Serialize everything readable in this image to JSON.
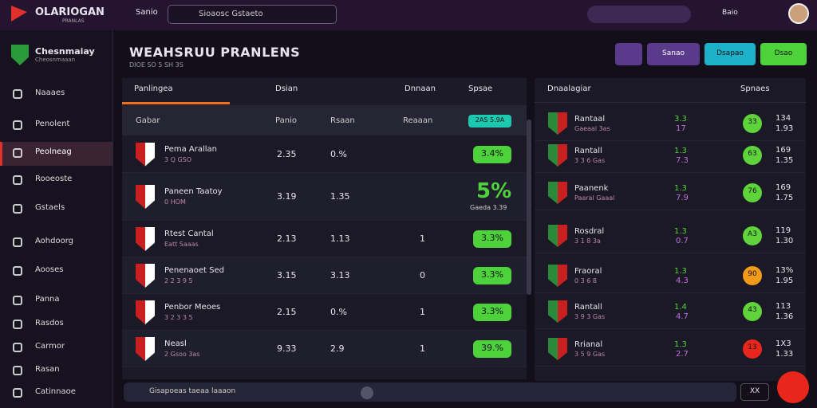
{
  "header": {
    "logo": "OLARIOGAN",
    "tagline": "PRANLAS",
    "nav": "Sanio",
    "search": "Sioaosc Gstaeto",
    "user": "Baio"
  },
  "sidebar": {
    "brand": "Chesnmaiay",
    "brand_sub": "Cheosnmaaan",
    "items": [
      "Naaaes",
      "Penolent",
      "Peolneag",
      "Rooeoste",
      "Gstaels",
      "Aohdoorg",
      "Aooses",
      "Panna",
      "Rasdos",
      "Carmor",
      "Rasan",
      "Catinnaoe"
    ],
    "active": 2
  },
  "main": {
    "title": "WEAHSRUU PRANLENS",
    "subtitle": "DIOE SO 5 SH 3S",
    "buttons": [
      "Sanao",
      "Dsapao",
      "Dsao"
    ]
  },
  "table": {
    "tabs": [
      "Panlingea",
      "Dsian",
      "Dnnaan",
      "Spsae"
    ],
    "columns": [
      "Gabar",
      "Panio",
      "Rsaan",
      "Reaaan",
      "2AS 5.9A"
    ],
    "rows": [
      {
        "name": "Pema Arallan",
        "sub": "3 Q GSO",
        "a": "2.35",
        "b": "0.%",
        "c": "",
        "pill": "3.4%"
      },
      {
        "name": "Paneen Taatoy",
        "sub": "0 HOM",
        "a": "3.19",
        "b": "1.35",
        "c": "",
        "pill": "5%",
        "note": "Gaeda 3.39"
      },
      {
        "name": "Rtest Cantal",
        "sub": "Eatt Saaas",
        "a": "2.13",
        "b": "1.13",
        "c": "1",
        "pill": "3.3%"
      },
      {
        "name": "Penenaoet Sed",
        "sub": "2 2 3 9 5",
        "a": "3.15",
        "b": "3.13",
        "c": "0",
        "pill": "3.3%"
      },
      {
        "name": "Penbor Meoes",
        "sub": "3 2 3 3 5",
        "a": "2.15",
        "b": "0.%",
        "c": "1",
        "pill": "3.3%"
      },
      {
        "name": "Neasl",
        "sub": "2 Gsoo 3as",
        "a": "9.33",
        "b": "2.9",
        "c": "1",
        "pill": "39.%"
      }
    ]
  },
  "side_table": {
    "title": "Dnaalagiar",
    "filter": "Spnaes",
    "rows": [
      {
        "name": "Rantaal",
        "sub": "Gaeaal 3as",
        "g": "3.3",
        "p": "17",
        "badge": "33",
        "badge_color": "#5ed33a",
        "r1": "134",
        "r2": "1.93"
      },
      {
        "name": "Rantall",
        "sub": "3 3 6 Gas",
        "g": "1.3",
        "p": "7.3",
        "badge": "63",
        "badge_color": "#5ed33a",
        "r1": "169",
        "r2": "1.35"
      },
      {
        "name": "Paanenk",
        "sub": "Paaral Gaaal",
        "g": "1.3",
        "p": "7.9",
        "badge": "76",
        "badge_color": "#5ed33a",
        "r1": "169",
        "r2": "1.75"
      },
      {
        "name": "Rosdral",
        "sub": "3 1 8 3a",
        "g": "1.3",
        "p": "0.7",
        "badge": "A3",
        "badge_color": "#5ed33a",
        "r1": "119",
        "r2": "1.30"
      },
      {
        "name": "Fraoral",
        "sub": "0 3 6 8",
        "g": "1.3",
        "p": "4.3",
        "badge": "90",
        "badge_color": "#f29a1a",
        "r1": "13%",
        "r2": "1.95"
      },
      {
        "name": "Rantall",
        "sub": "3 9 3 Gas",
        "g": "1.4",
        "p": "4.7",
        "badge": "43",
        "badge_color": "#5ed33a",
        "r1": "113",
        "r2": "1.36"
      },
      {
        "name": "Rrianal",
        "sub": "3 5 9 Gas",
        "g": "1.3",
        "p": "2.7",
        "badge": "13",
        "badge_color": "#e8261c",
        "r1": "1X3",
        "r2": "1.33"
      }
    ]
  },
  "footer": {
    "search": "Gisapoeas taeaa laaaon",
    "button": "XX"
  }
}
